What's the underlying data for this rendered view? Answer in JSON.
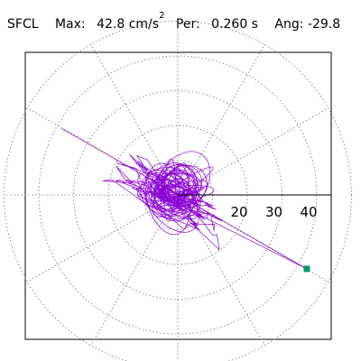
{
  "header": {
    "station": "SFCL",
    "max_label": "Max:",
    "max_value": "42.8 cm/s",
    "max_exp": "2",
    "per_label": "Per:",
    "per_value": "0.260 s",
    "ang_label": "Ang:",
    "ang_value": "-29.8"
  },
  "chart_data": {
    "type": "polar-hodogram",
    "title": "SFCL",
    "radial_max": 42.8,
    "period_s": 0.26,
    "angle_deg": -29.8,
    "radial_range": [
      0,
      50
    ],
    "radial_ticks": [
      10,
      20,
      30,
      40
    ],
    "radial_tick_labels": [
      "20",
      "30",
      "40"
    ],
    "spoke_angles_deg": [
      0,
      30,
      60,
      90,
      120,
      150,
      180,
      210,
      240,
      270,
      300,
      330
    ],
    "grid": true,
    "peak_point_deg": -29.8,
    "peak_point_r": 42.8,
    "colors": {
      "trace": "#8a00d4",
      "peak_marker": "#009b6e",
      "grid": "#777777"
    }
  }
}
